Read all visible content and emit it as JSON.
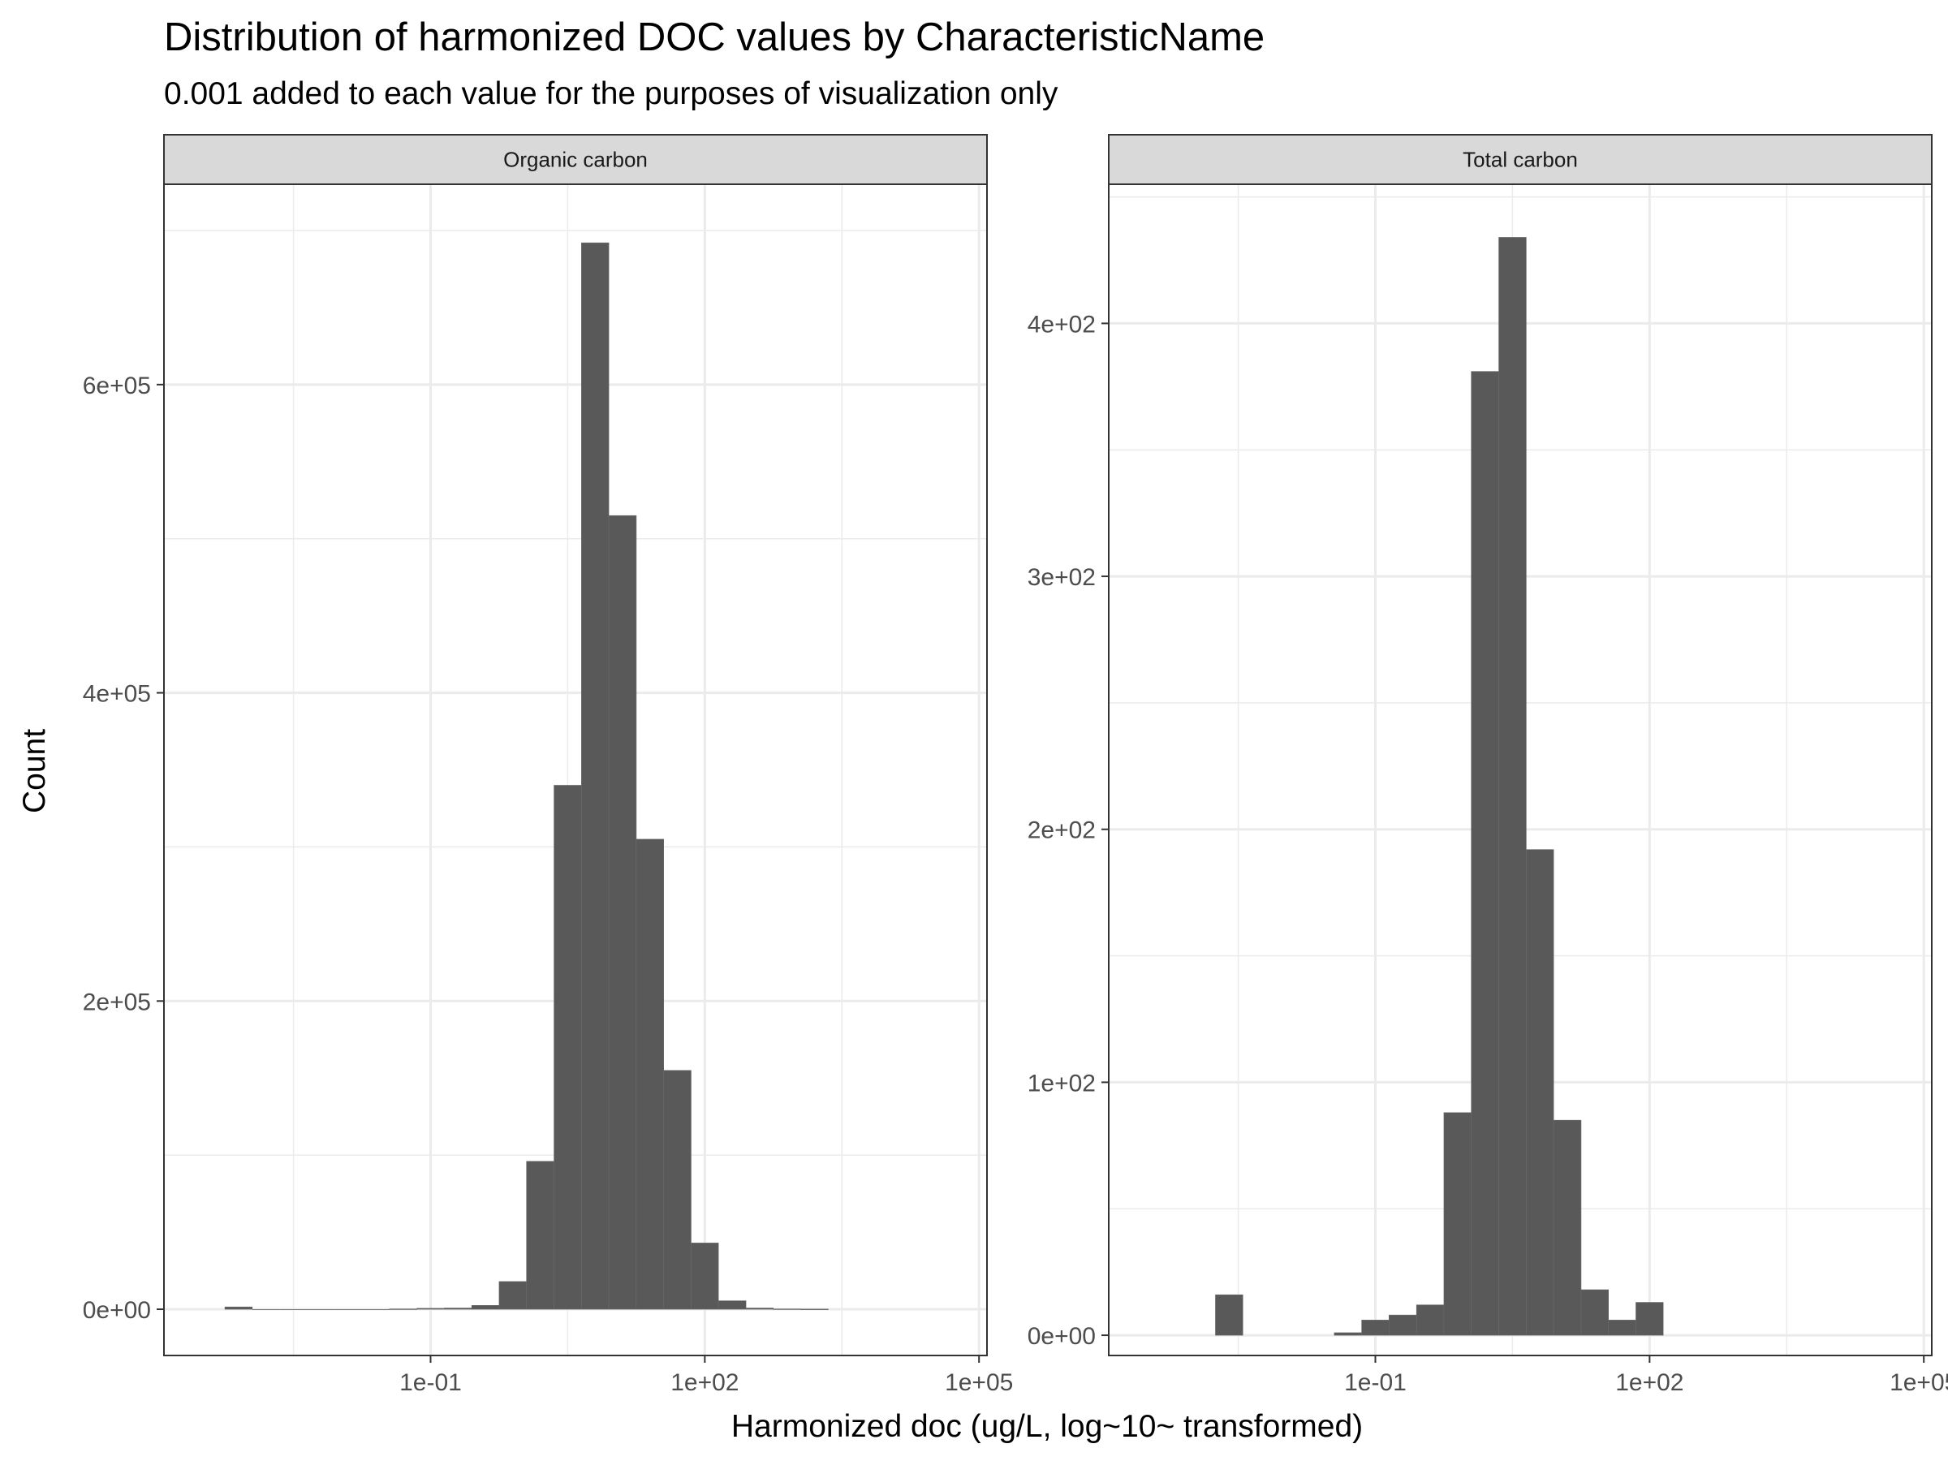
{
  "chart_data": {
    "type": "bar",
    "title": "Distribution of harmonized DOC values by CharacteristicName",
    "subtitle": "0.001 added to each value for the purposes of visualization only",
    "xlabel": "Harmonized doc (ug/L, log~10~ transformed)",
    "ylabel": "Count",
    "x_scale": "log10",
    "x_tick_labels": [
      "1e-01",
      "1e+02",
      "1e+05"
    ],
    "x_tick_values": [
      0.1,
      100,
      100000
    ],
    "grid": true,
    "colors": {
      "bar": "#595959",
      "strip": "#d9d9d9",
      "grid": "#ebebeb",
      "panel_border": "#333333"
    },
    "panels": [
      {
        "label": "Organic carbon",
        "ylim": [
          -30000,
          730000
        ],
        "y_tick_values": [
          0,
          200000,
          400000,
          600000
        ],
        "y_tick_labels": [
          "0e+00",
          "2e+05",
          "4e+05",
          "6e+05"
        ],
        "bins": [
          {
            "x0": 0.000562,
            "x1": 0.00112,
            "count": 1500
          },
          {
            "x0": 0.00112,
            "x1": 0.00224,
            "count": 0
          },
          {
            "x0": 0.00224,
            "x1": 0.00447,
            "count": 0
          },
          {
            "x0": 0.00447,
            "x1": 0.00891,
            "count": 0
          },
          {
            "x0": 0.00891,
            "x1": 0.0178,
            "count": 0
          },
          {
            "x0": 0.0178,
            "x1": 0.0355,
            "count": 0
          },
          {
            "x0": 0.0355,
            "x1": 0.0708,
            "count": 200
          },
          {
            "x0": 0.0708,
            "x1": 0.141,
            "count": 600
          },
          {
            "x0": 0.141,
            "x1": 0.282,
            "count": 800
          },
          {
            "x0": 0.282,
            "x1": 0.562,
            "count": 2500
          },
          {
            "x0": 0.562,
            "x1": 1.12,
            "count": 18000
          },
          {
            "x0": 1.12,
            "x1": 2.24,
            "count": 96000
          },
          {
            "x0": 2.24,
            "x1": 4.47,
            "count": 340000
          },
          {
            "x0": 4.47,
            "x1": 8.91,
            "count": 692000
          },
          {
            "x0": 8.91,
            "x1": 17.8,
            "count": 515000
          },
          {
            "x0": 17.8,
            "x1": 35.5,
            "count": 305000
          },
          {
            "x0": 35.5,
            "x1": 70.8,
            "count": 155000
          },
          {
            "x0": 70.8,
            "x1": 141,
            "count": 43000
          },
          {
            "x0": 141,
            "x1": 282,
            "count": 5500
          },
          {
            "x0": 282,
            "x1": 562,
            "count": 800
          },
          {
            "x0": 562,
            "x1": 1120,
            "count": 200
          },
          {
            "x0": 1120,
            "x1": 2240,
            "count": 100
          }
        ]
      },
      {
        "label": "Total carbon",
        "ylim": [
          -8,
          455
        ],
        "y_tick_values": [
          0,
          100,
          200,
          300,
          400
        ],
        "y_tick_labels": [
          "0e+00",
          "1e+02",
          "2e+02",
          "3e+02",
          "4e+02"
        ],
        "bins": [
          {
            "x0": 0.00178,
            "x1": 0.00355,
            "count": 16
          },
          {
            "x0": 0.0355,
            "x1": 0.0708,
            "count": 1
          },
          {
            "x0": 0.0708,
            "x1": 0.141,
            "count": 6
          },
          {
            "x0": 0.141,
            "x1": 0.282,
            "count": 8
          },
          {
            "x0": 0.282,
            "x1": 0.562,
            "count": 12
          },
          {
            "x0": 0.562,
            "x1": 1.12,
            "count": 88
          },
          {
            "x0": 1.12,
            "x1": 2.24,
            "count": 381
          },
          {
            "x0": 2.24,
            "x1": 4.47,
            "count": 434
          },
          {
            "x0": 4.47,
            "x1": 8.91,
            "count": 192
          },
          {
            "x0": 8.91,
            "x1": 17.8,
            "count": 85
          },
          {
            "x0": 17.8,
            "x1": 35.5,
            "count": 18
          },
          {
            "x0": 35.5,
            "x1": 70.8,
            "count": 6
          },
          {
            "x0": 70.8,
            "x1": 141,
            "count": 13
          }
        ]
      }
    ]
  }
}
